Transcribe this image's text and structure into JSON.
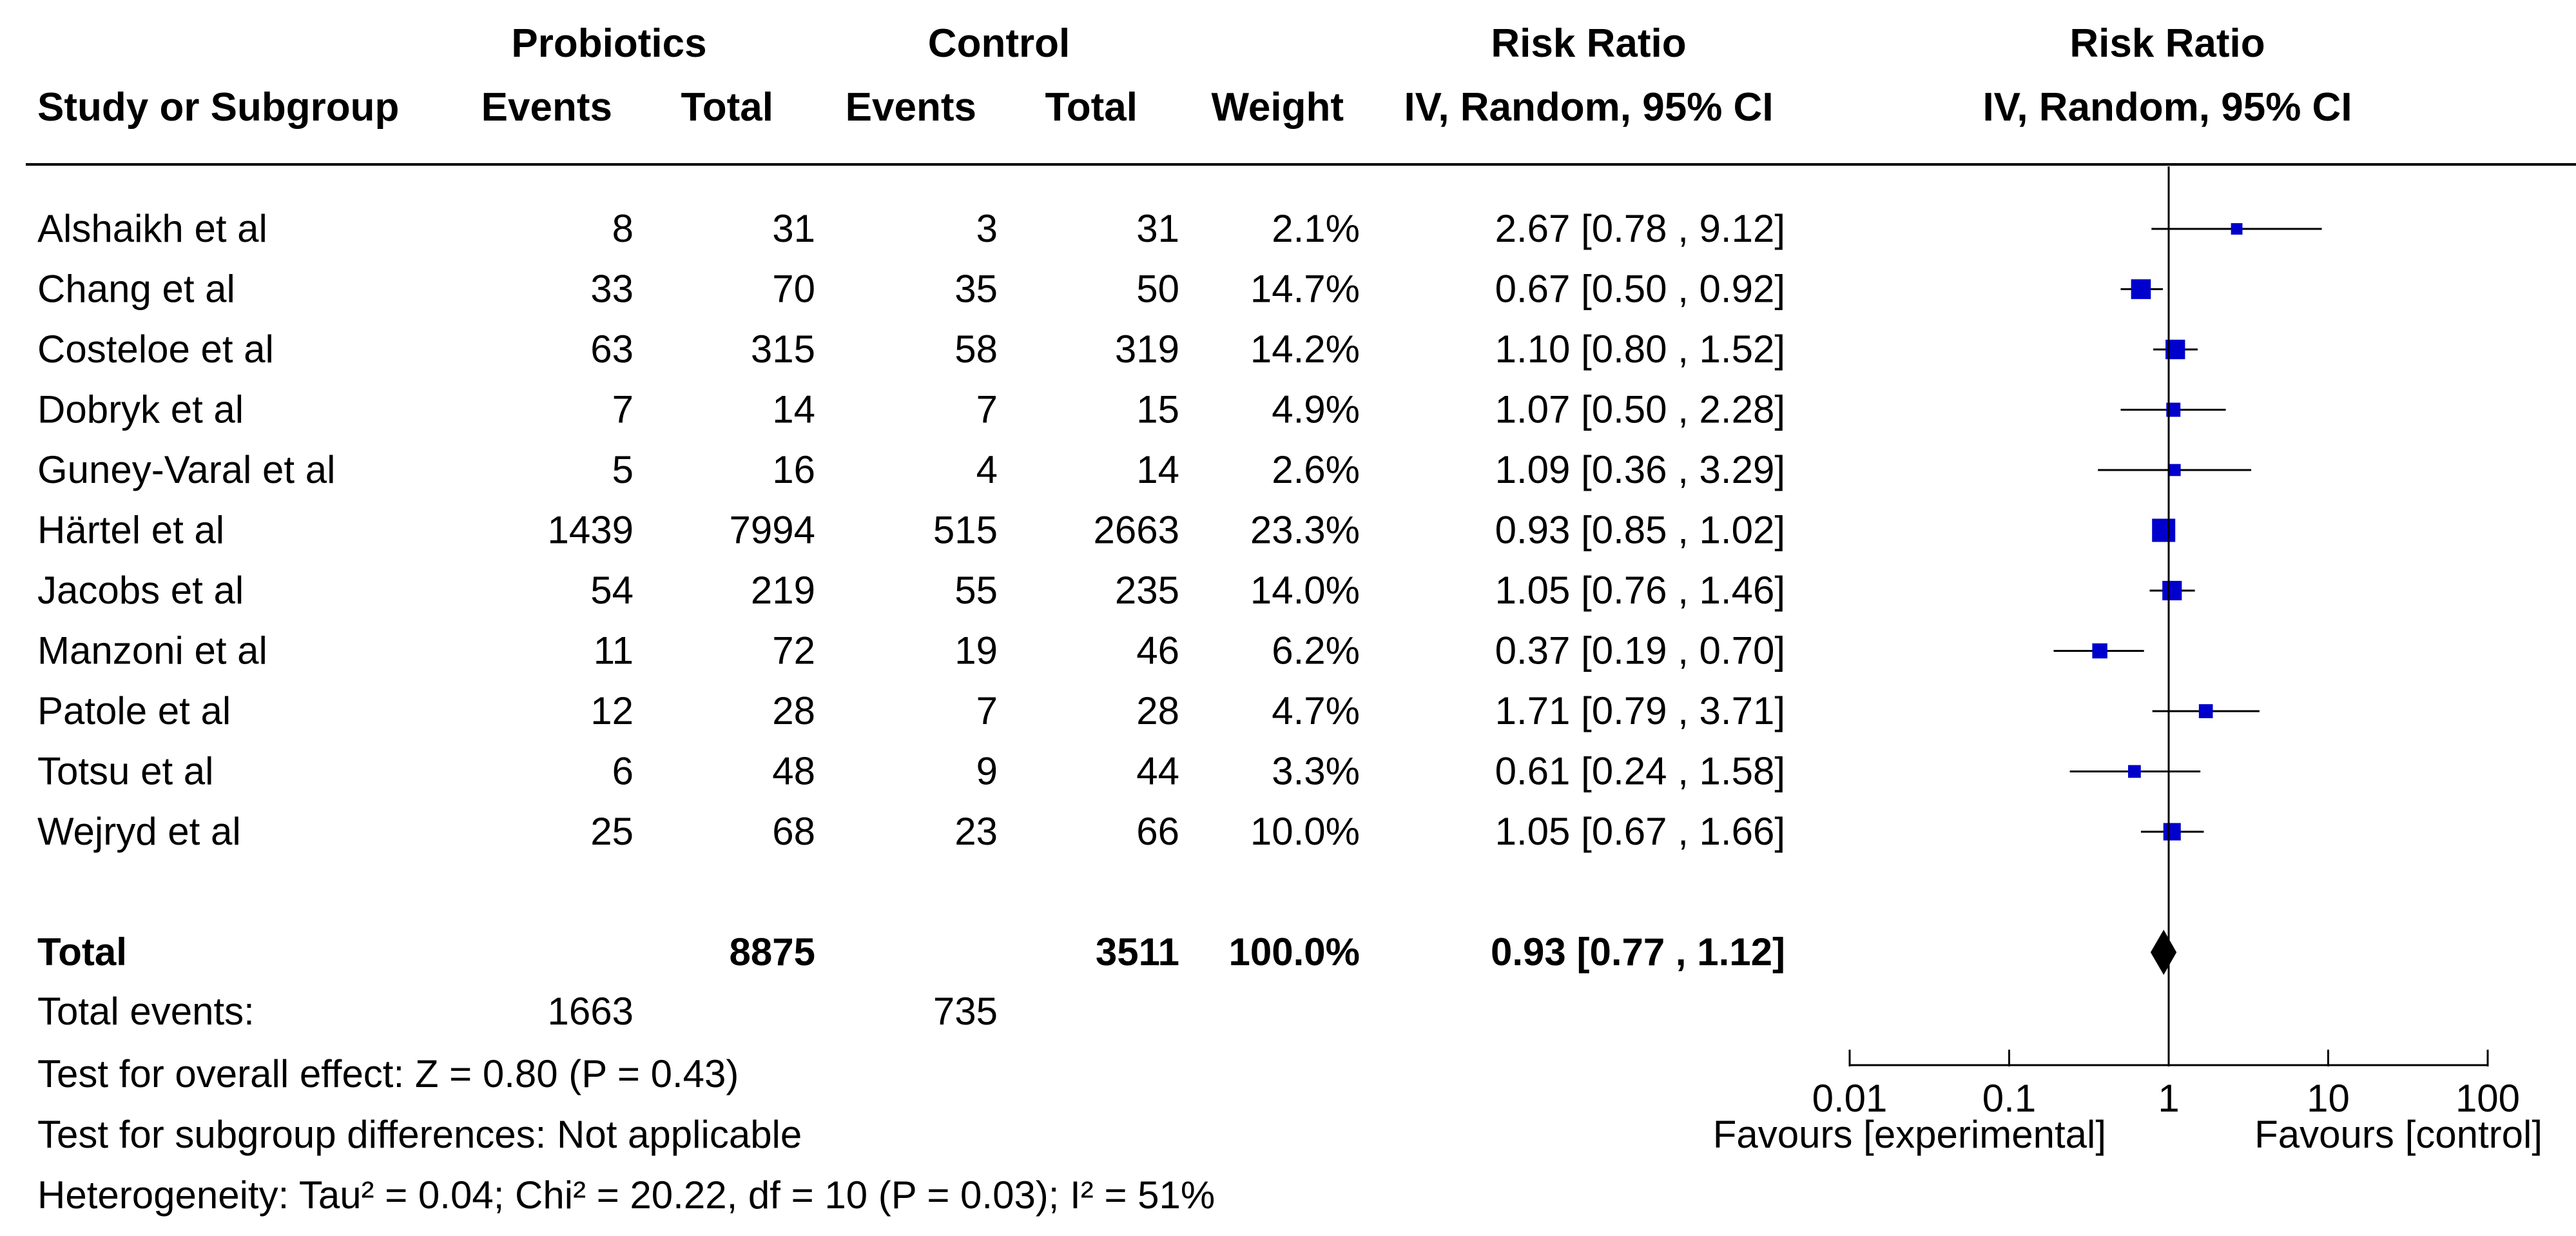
{
  "header": {
    "probiotics": "Probiotics",
    "control": "Control",
    "risk_ratio": "Risk Ratio",
    "risk_ratio_plot": "Risk Ratio",
    "study": "Study or Subgroup",
    "events_exp": "Events",
    "total_exp": "Total",
    "events_ctrl": "Events",
    "total_ctrl": "Total",
    "weight": "Weight",
    "method": "IV, Random, 95% CI",
    "method_plot": "IV, Random, 95% CI"
  },
  "studies": [
    {
      "name": "Alshaikh et al",
      "e_events": "8",
      "e_total": "31",
      "c_events": "3",
      "c_total": "31",
      "weight": "2.1%",
      "ci": "2.67 [0.78 , 9.12]"
    },
    {
      "name": "Chang et al",
      "e_events": "33",
      "e_total": "70",
      "c_events": "35",
      "c_total": "50",
      "weight": "14.7%",
      "ci": "0.67 [0.50 , 0.92]"
    },
    {
      "name": "Costeloe et al",
      "e_events": "63",
      "e_total": "315",
      "c_events": "58",
      "c_total": "319",
      "weight": "14.2%",
      "ci": "1.10 [0.80 , 1.52]"
    },
    {
      "name": "Dobryk et al",
      "e_events": "7",
      "e_total": "14",
      "c_events": "7",
      "c_total": "15",
      "weight": "4.9%",
      "ci": "1.07 [0.50 , 2.28]"
    },
    {
      "name": "Guney-Varal et al",
      "e_events": "5",
      "e_total": "16",
      "c_events": "4",
      "c_total": "14",
      "weight": "2.6%",
      "ci": "1.09 [0.36 , 3.29]"
    },
    {
      "name": "Härtel et al",
      "e_events": "1439",
      "e_total": "7994",
      "c_events": "515",
      "c_total": "2663",
      "weight": "23.3%",
      "ci": "0.93 [0.85 , 1.02]"
    },
    {
      "name": "Jacobs et al",
      "e_events": "54",
      "e_total": "219",
      "c_events": "55",
      "c_total": "235",
      "weight": "14.0%",
      "ci": "1.05 [0.76 , 1.46]"
    },
    {
      "name": "Manzoni et al",
      "e_events": "11",
      "e_total": "72",
      "c_events": "19",
      "c_total": "46",
      "weight": "6.2%",
      "ci": "0.37 [0.19 , 0.70]"
    },
    {
      "name": "Patole et al",
      "e_events": "12",
      "e_total": "28",
      "c_events": "7",
      "c_total": "28",
      "weight": "4.7%",
      "ci": "1.71 [0.79 , 3.71]"
    },
    {
      "name": "Totsu et al",
      "e_events": "6",
      "e_total": "48",
      "c_events": "9",
      "c_total": "44",
      "weight": "3.3%",
      "ci": "0.61 [0.24 , 1.58]"
    },
    {
      "name": "Wejryd et al",
      "e_events": "25",
      "e_total": "68",
      "c_events": "23",
      "c_total": "66",
      "weight": "10.0%",
      "ci": "1.05 [0.67 , 1.66]"
    }
  ],
  "total": {
    "label": "Total",
    "e_total": "8875",
    "c_total": "3511",
    "weight": "100.0%",
    "ci": "0.93 [0.77 , 1.12]"
  },
  "total_events": {
    "label": "Total events:",
    "e_events": "1663",
    "c_events": "735"
  },
  "footer": {
    "overall": "Test for overall effect: Z = 0.80 (P = 0.43)",
    "subgroup": "Test for subgroup differences: Not applicable",
    "heterogeneity": "Heterogeneity: Tau² = 0.04; Chi² = 20.22, df = 10 (P = 0.03); I² = 51%"
  },
  "axis": {
    "ticks": [
      "0.01",
      "0.1",
      "1",
      "10",
      "100"
    ],
    "favours_left": "Favours [experimental]",
    "favours_right": "Favours [control]"
  },
  "colors": {
    "marker": "#0000CC",
    "line": "#000000",
    "diamond": "#000000"
  },
  "chart_data": {
    "type": "forest",
    "scale": "log",
    "xlim": [
      0.01,
      100
    ],
    "reference": 1,
    "xticks": [
      0.01,
      0.1,
      1,
      10,
      100
    ],
    "studies": [
      {
        "name": "Alshaikh et al",
        "rr": 2.67,
        "lo": 0.78,
        "hi": 9.12,
        "weight": 2.1
      },
      {
        "name": "Chang et al",
        "rr": 0.67,
        "lo": 0.5,
        "hi": 0.92,
        "weight": 14.7
      },
      {
        "name": "Costeloe et al",
        "rr": 1.1,
        "lo": 0.8,
        "hi": 1.52,
        "weight": 14.2
      },
      {
        "name": "Dobryk et al",
        "rr": 1.07,
        "lo": 0.5,
        "hi": 2.28,
        "weight": 4.9
      },
      {
        "name": "Guney-Varal et al",
        "rr": 1.09,
        "lo": 0.36,
        "hi": 3.29,
        "weight": 2.6
      },
      {
        "name": "Härtel et al",
        "rr": 0.93,
        "lo": 0.85,
        "hi": 1.02,
        "weight": 23.3
      },
      {
        "name": "Jacobs et al",
        "rr": 1.05,
        "lo": 0.76,
        "hi": 1.46,
        "weight": 14.0
      },
      {
        "name": "Manzoni et al",
        "rr": 0.37,
        "lo": 0.19,
        "hi": 0.7,
        "weight": 6.2
      },
      {
        "name": "Patole et al",
        "rr": 1.71,
        "lo": 0.79,
        "hi": 3.71,
        "weight": 4.7
      },
      {
        "name": "Totsu et al",
        "rr": 0.61,
        "lo": 0.24,
        "hi": 1.58,
        "weight": 3.3
      },
      {
        "name": "Wejryd et al",
        "rr": 1.05,
        "lo": 0.67,
        "hi": 1.66,
        "weight": 10.0
      }
    ],
    "pooled": {
      "rr": 0.93,
      "lo": 0.77,
      "hi": 1.12
    }
  }
}
